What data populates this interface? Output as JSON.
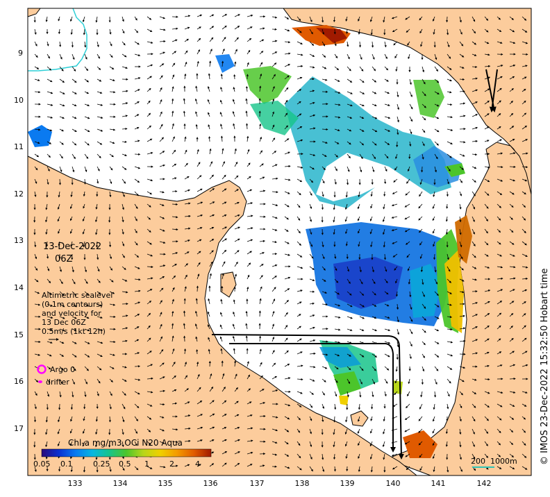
{
  "date_label": "13-Dec-2022",
  "time_label": "06Z",
  "legend_text": {
    "line1": "Altimetric sealevel",
    "line2": "(0.1m contours)",
    "line3": "and velocity for",
    "line4": "13 Dec 06Z",
    "line5": "0.5m/s (1kt 12h)"
  },
  "markers": {
    "argo_label": "Argo 0",
    "drifter_label": "drifter",
    "argo_color": "#ff00ff",
    "drifter_color": "#ff00ff"
  },
  "colorbar": {
    "title": "Chl-a mg/m3 OCi N20 Aqua",
    "ticks": [
      "0.05",
      "0.1",
      "0.25",
      "0.5",
      "1",
      "2",
      "4"
    ],
    "colors": [
      "#2a0a7a",
      "#0a2fd0",
      "#0a7af0",
      "#0ab7e0",
      "#17c48a",
      "#4cc52b",
      "#b8d61a",
      "#f0d000",
      "#f49a00",
      "#e05a00",
      "#a01a00"
    ]
  },
  "scale_bar": {
    "label_km": "200",
    "label_m": "1000m",
    "color": "#2ec4b6"
  },
  "axes": {
    "lat_ticks": [
      "9",
      "10",
      "11",
      "12",
      "13",
      "14",
      "15",
      "16",
      "17"
    ],
    "lon_ticks": [
      "133",
      "134",
      "135",
      "136",
      "137",
      "138",
      "139",
      "140",
      "141",
      "142"
    ]
  },
  "credit": "© IMOS 23-Dec-2022 15:32:50 Hobart time",
  "colors": {
    "land": "#fccc9c",
    "ocean": "#ffffff",
    "coast": "#000000"
  }
}
